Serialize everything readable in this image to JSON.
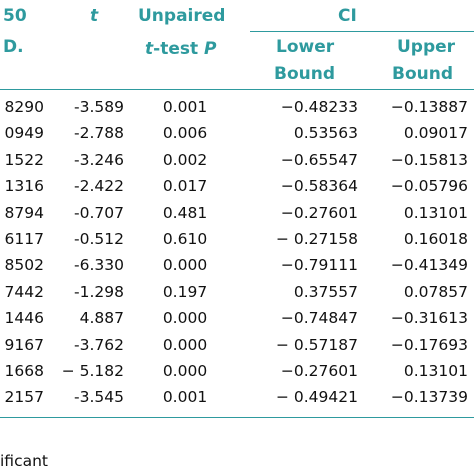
{
  "headers": {
    "col1_line1": "50",
    "col1_line2": "D.",
    "t": "t",
    "unpaired_line1": "Unpaired",
    "unpaired_line2_italic": "t",
    "unpaired_line2_rest": "-test ",
    "unpaired_line2_p": "P",
    "ci": "CI",
    "lower_line1": "Lower",
    "lower_line2": "Bound",
    "upper_line1": "Upper",
    "upper_line2": "Bound"
  },
  "rows": [
    {
      "c1": "8290",
      "t": "-3.589",
      "p": "0.001",
      "lower": "−0.48233",
      "upper": "−0.13887"
    },
    {
      "c1": "0949",
      "t": "-2.788",
      "p": "0.006",
      "lower": "0.53563",
      "upper": "0.09017"
    },
    {
      "c1": "1522",
      "t": "-3.246",
      "p": "0.002",
      "lower": "−0.65547",
      "upper": "−0.15813"
    },
    {
      "c1": "1316",
      "t": "-2.422",
      "p": "0.017",
      "lower": "−0.58364",
      "upper": "−0.05796"
    },
    {
      "c1": "8794",
      "t": "-0.707",
      "p": "0.481",
      "lower": "−0.27601",
      "upper": "0.13101"
    },
    {
      "c1": "6117",
      "t": "-0.512",
      "p": "0.610",
      "lower": "− 0.27158",
      "upper": "0.16018"
    },
    {
      "c1": "8502",
      "t": "-6.330",
      "p": "0.000",
      "lower": "−0.79111",
      "upper": "−0.41349"
    },
    {
      "c1": "7442",
      "t": "-1.298",
      "p": "0.197",
      "lower": "0.37557",
      "upper": "0.07857"
    },
    {
      "c1": "1446",
      "t": "4.887",
      "p": "0.000",
      "lower": "−0.74847",
      "upper": "−0.31613"
    },
    {
      "c1": "9167",
      "t": "-3.762",
      "p": "0.000",
      "lower": "− 0.57187",
      "upper": "−0.17693"
    },
    {
      "c1": "1668",
      "t": "− 5.182",
      "p": "0.000",
      "lower": "−0.27601",
      "upper": "0.13101"
    },
    {
      "c1": "2157",
      "t": "-3.545",
      "p": "0.001",
      "lower": "− 0.49421",
      "upper": "−0.13739"
    }
  ],
  "footnote": "ificant"
}
